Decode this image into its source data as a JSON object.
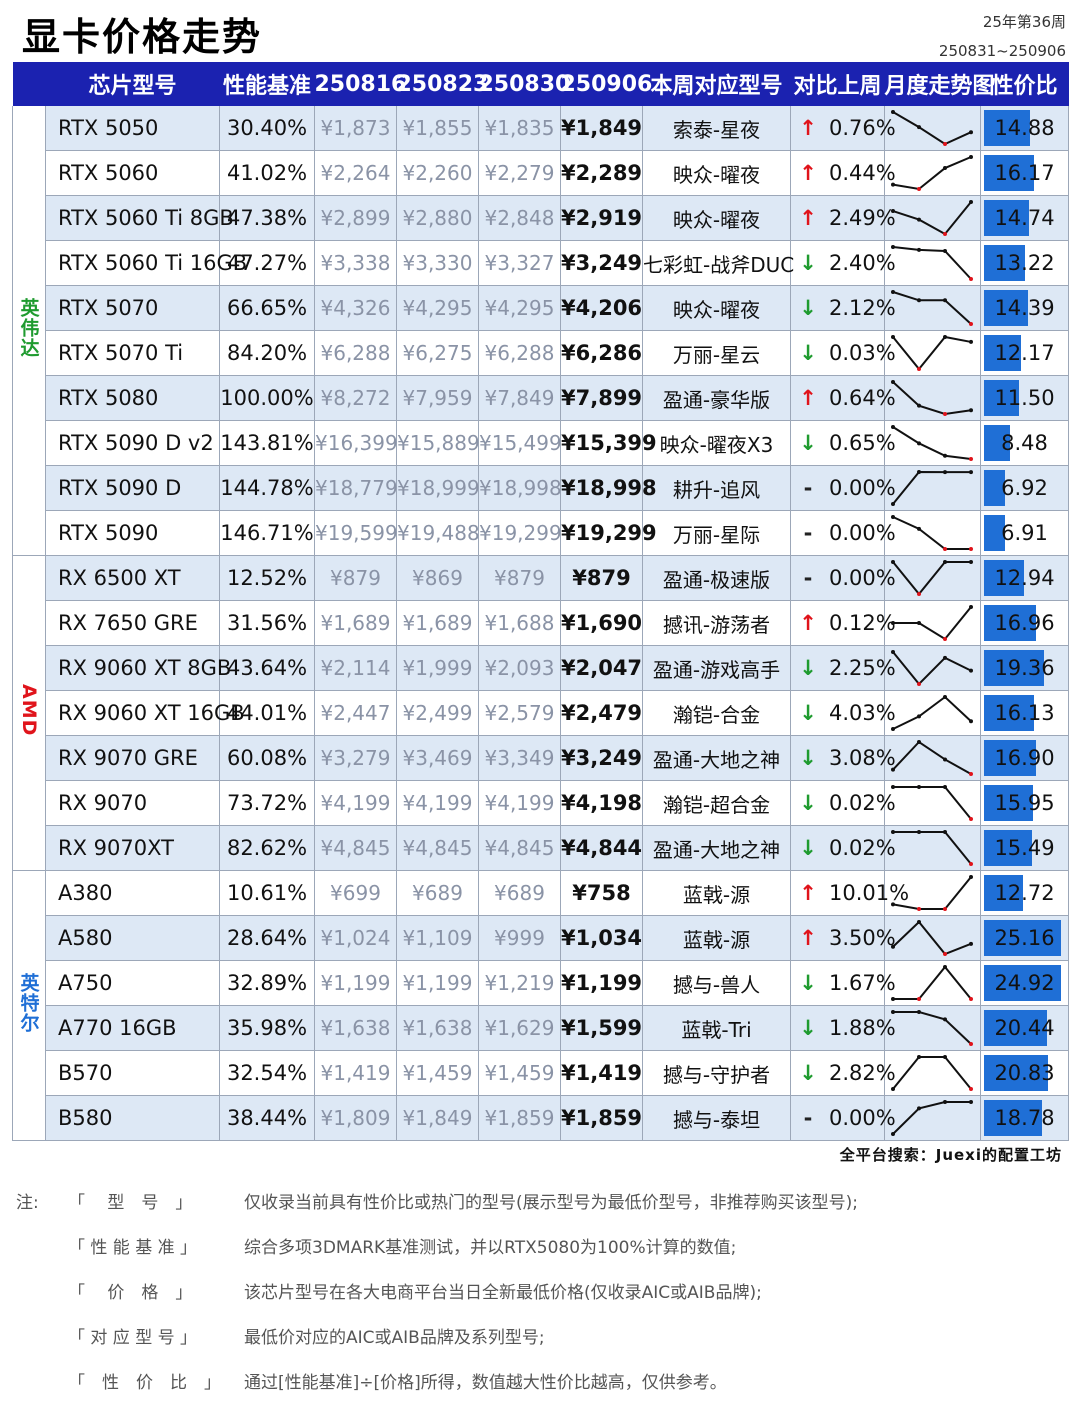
{
  "title": "显卡价格走势",
  "week": "25年第36周",
  "range": "250831~250906",
  "headers": [
    "芯片型号",
    "性能基准",
    "250816",
    "250823",
    "250830",
    "250906",
    "本周对应型号",
    "对比上周",
    "月度走势图",
    "性价比"
  ],
  "colors": {
    "header_bg": "#1b22b0",
    "nvidia": "#1f9b2f",
    "amd": "#e0141b",
    "intel": "#1f6fd6",
    "up": "#e0141b",
    "down": "#1f9b2f",
    "ratio_bar": "#1f6fd6"
  },
  "groups": [
    {
      "brand": "英伟达",
      "color": "#1f9b2f",
      "rows": [
        {
          "chip": "RTX 5050",
          "perf": "30.40%",
          "p1": "¥1,873",
          "p2": "¥1,855",
          "p3": "¥1,835",
          "p4": "¥1,849",
          "model": "索泰-星夜",
          "dir": "up",
          "change": "0.76%",
          "ratio": "14.88",
          "ratio_num": 14.88,
          "trend": [
            1873,
            1855,
            1835,
            1849
          ]
        },
        {
          "chip": "RTX 5060",
          "perf": "41.02%",
          "p1": "¥2,264",
          "p2": "¥2,260",
          "p3": "¥2,279",
          "p4": "¥2,289",
          "model": "映众-曜夜",
          "dir": "up",
          "change": "0.44%",
          "ratio": "16.17",
          "ratio_num": 16.17,
          "trend": [
            2264,
            2260,
            2279,
            2289
          ]
        },
        {
          "chip": "RTX 5060 Ti 8GB",
          "perf": "47.38%",
          "p1": "¥2,899",
          "p2": "¥2,880",
          "p3": "¥2,848",
          "p4": "¥2,919",
          "model": "映众-曜夜",
          "dir": "up",
          "change": "2.49%",
          "ratio": "14.74",
          "ratio_num": 14.74,
          "trend": [
            2899,
            2880,
            2848,
            2919
          ]
        },
        {
          "chip": "RTX 5060 Ti 16GB",
          "perf": "47.27%",
          "p1": "¥3,338",
          "p2": "¥3,330",
          "p3": "¥3,327",
          "p4": "¥3,249",
          "model": "七彩虹-战斧DUC",
          "dir": "down",
          "change": "2.40%",
          "ratio": "13.22",
          "ratio_num": 13.22,
          "trend": [
            3338,
            3330,
            3327,
            3249
          ]
        },
        {
          "chip": "RTX 5070",
          "perf": "66.65%",
          "p1": "¥4,326",
          "p2": "¥4,295",
          "p3": "¥4,295",
          "p4": "¥4,206",
          "model": "映众-曜夜",
          "dir": "down",
          "change": "2.12%",
          "ratio": "14.39",
          "ratio_num": 14.39,
          "trend": [
            4326,
            4295,
            4295,
            4206
          ]
        },
        {
          "chip": "RTX 5070 Ti",
          "perf": "84.20%",
          "p1": "¥6,288",
          "p2": "¥6,275",
          "p3": "¥6,288",
          "p4": "¥6,286",
          "model": "万丽-星云",
          "dir": "down",
          "change": "0.03%",
          "ratio": "12.17",
          "ratio_num": 12.17,
          "trend": [
            6288,
            6275,
            6288,
            6286
          ]
        },
        {
          "chip": "RTX 5080",
          "perf": "100.00%",
          "p1": "¥8,272",
          "p2": "¥7,959",
          "p3": "¥7,849",
          "p4": "¥7,899",
          "model": "盈通-豪华版",
          "dir": "up",
          "change": "0.64%",
          "ratio": "11.50",
          "ratio_num": 11.5,
          "trend": [
            8272,
            7959,
            7849,
            7899
          ]
        },
        {
          "chip": "RTX 5090 D v2",
          "perf": "143.81%",
          "p1": "¥16,399",
          "p2": "¥15,889",
          "p3": "¥15,499",
          "p4": "¥15,399",
          "model": "映众-曜夜X3",
          "dir": "down",
          "change": "0.65%",
          "ratio": "8.48",
          "ratio_num": 8.48,
          "trend": [
            16399,
            15889,
            15499,
            15399
          ]
        },
        {
          "chip": "RTX 5090 D",
          "perf": "144.78%",
          "p1": "¥18,779",
          "p2": "¥18,999",
          "p3": "¥18,998",
          "p4": "¥18,998",
          "model": "耕升-追风",
          "dir": "flat",
          "change": "0.00%",
          "ratio": "6.92",
          "ratio_num": 6.92,
          "trend": [
            18779,
            18999,
            18998,
            18998
          ]
        },
        {
          "chip": "RTX 5090",
          "perf": "146.71%",
          "p1": "¥19,599",
          "p2": "¥19,488",
          "p3": "¥19,299",
          "p4": "¥19,299",
          "model": "万丽-星际",
          "dir": "flat",
          "change": "0.00%",
          "ratio": "6.91",
          "ratio_num": 6.91,
          "trend": [
            19599,
            19488,
            19299,
            19299
          ]
        }
      ]
    },
    {
      "brand": "AMD",
      "color": "#e0141b",
      "rows": [
        {
          "chip": "RX 6500 XT",
          "perf": "12.52%",
          "p1": "¥879",
          "p2": "¥869",
          "p3": "¥879",
          "p4": "¥879",
          "model": "盈通-极速版",
          "dir": "flat",
          "change": "0.00%",
          "ratio": "12.94",
          "ratio_num": 12.94,
          "trend": [
            879,
            869,
            879,
            879
          ]
        },
        {
          "chip": "RX 7650 GRE",
          "perf": "31.56%",
          "p1": "¥1,689",
          "p2": "¥1,689",
          "p3": "¥1,688",
          "p4": "¥1,690",
          "model": "撼讯-游荡者",
          "dir": "up",
          "change": "0.12%",
          "ratio": "16.96",
          "ratio_num": 16.96,
          "trend": [
            1689,
            1689,
            1688,
            1690
          ]
        },
        {
          "chip": "RX 9060 XT 8GB",
          "perf": "43.64%",
          "p1": "¥2,114",
          "p2": "¥1,999",
          "p3": "¥2,093",
          "p4": "¥2,047",
          "model": "盈通-游戏高手",
          "dir": "down",
          "change": "2.25%",
          "ratio": "19.36",
          "ratio_num": 19.36,
          "trend": [
            2114,
            1999,
            2093,
            2047
          ]
        },
        {
          "chip": "RX 9060 XT 16GB",
          "perf": "44.01%",
          "p1": "¥2,447",
          "p2": "¥2,499",
          "p3": "¥2,579",
          "p4": "¥2,479",
          "model": "瀚铠-合金",
          "dir": "down",
          "change": "4.03%",
          "ratio": "16.13",
          "ratio_num": 16.13,
          "trend": [
            2447,
            2499,
            2579,
            2479
          ]
        },
        {
          "chip": "RX 9070 GRE",
          "perf": "60.08%",
          "p1": "¥3,279",
          "p2": "¥3,469",
          "p3": "¥3,349",
          "p4": "¥3,249",
          "model": "盈通-大地之神",
          "dir": "down",
          "change": "3.08%",
          "ratio": "16.90",
          "ratio_num": 16.9,
          "trend": [
            3279,
            3469,
            3349,
            3249
          ]
        },
        {
          "chip": "RX 9070",
          "perf": "73.72%",
          "p1": "¥4,199",
          "p2": "¥4,199",
          "p3": "¥4,199",
          "p4": "¥4,198",
          "model": "瀚铠-超合金",
          "dir": "down",
          "change": "0.02%",
          "ratio": "15.95",
          "ratio_num": 15.95,
          "trend": [
            4199,
            4199,
            4199,
            4198
          ]
        },
        {
          "chip": "RX 9070XT",
          "perf": "82.62%",
          "p1": "¥4,845",
          "p2": "¥4,845",
          "p3": "¥4,845",
          "p4": "¥4,844",
          "model": "盈通-大地之神",
          "dir": "down",
          "change": "0.02%",
          "ratio": "15.49",
          "ratio_num": 15.49,
          "trend": [
            4845,
            4845,
            4845,
            4844
          ]
        }
      ]
    },
    {
      "brand": "英特尔",
      "color": "#1f6fd6",
      "rows": [
        {
          "chip": "A380",
          "perf": "10.61%",
          "p1": "¥699",
          "p2": "¥689",
          "p3": "¥689",
          "p4": "¥758",
          "model": "蓝戟-源",
          "dir": "up",
          "change": "10.01%",
          "ratio": "12.72",
          "ratio_num": 12.72,
          "trend": [
            699,
            689,
            689,
            758
          ]
        },
        {
          "chip": "A580",
          "perf": "28.64%",
          "p1": "¥1,024",
          "p2": "¥1,109",
          "p3": "¥999",
          "p4": "¥1,034",
          "model": "蓝戟-源",
          "dir": "up",
          "change": "3.50%",
          "ratio": "25.16",
          "ratio_num": 25.16,
          "trend": [
            1024,
            1109,
            999,
            1034
          ]
        },
        {
          "chip": "A750",
          "perf": "32.89%",
          "p1": "¥1,199",
          "p2": "¥1,199",
          "p3": "¥1,219",
          "p4": "¥1,199",
          "model": "撼与-兽人",
          "dir": "down",
          "change": "1.67%",
          "ratio": "24.92",
          "ratio_num": 24.92,
          "trend": [
            1199,
            1199,
            1219,
            1199
          ]
        },
        {
          "chip": "A770 16GB",
          "perf": "35.98%",
          "p1": "¥1,638",
          "p2": "¥1,638",
          "p3": "¥1,629",
          "p4": "¥1,599",
          "model": "蓝戟-Tri",
          "dir": "down",
          "change": "1.88%",
          "ratio": "20.44",
          "ratio_num": 20.44,
          "trend": [
            1638,
            1638,
            1629,
            1599
          ]
        },
        {
          "chip": "B570",
          "perf": "32.54%",
          "p1": "¥1,419",
          "p2": "¥1,459",
          "p3": "¥1,459",
          "p4": "¥1,419",
          "model": "撼与-守护者",
          "dir": "down",
          "change": "2.82%",
          "ratio": "20.83",
          "ratio_num": 20.83,
          "trend": [
            1419,
            1459,
            1459,
            1419
          ]
        },
        {
          "chip": "B580",
          "perf": "38.44%",
          "p1": "¥1,809",
          "p2": "¥1,849",
          "p3": "¥1,859",
          "p4": "¥1,859",
          "model": "撼与-泰坦",
          "dir": "flat",
          "change": "0.00%",
          "ratio": "18.78",
          "ratio_num": 18.78,
          "trend": [
            1809,
            1849,
            1859,
            1859
          ]
        }
      ]
    }
  ],
  "arrows": {
    "up": "↑",
    "down": "↓",
    "flat": "-"
  },
  "ratio_max": 26,
  "search": "全平台搜索：Juexi的配置工坊",
  "notes_prefix": "注:",
  "notes": [
    {
      "term": "「　 型　号　」",
      "desc": "仅收录当前具有性价比或热门的型号(展示型号为最低价型号，非推荐购买该型号);"
    },
    {
      "term": "「 性 能 基 准 」",
      "desc": "综合多项3DMARK基准测试，并以RTX5080为100%计算的数值;"
    },
    {
      "term": "「　 价　格　」",
      "desc": "该芯片型号在各大电商平台当日全新最低价格(仅收录AIC或AIB品牌);"
    },
    {
      "term": "「 对 应 型 号 」",
      "desc": "最低价对应的AIC或AIB品牌及系列型号;"
    },
    {
      "term": "「　性　价　比　」",
      "desc": "通过[性能基准]÷[价格]所得，数值越大性价比越高，仅供参考。"
    }
  ]
}
